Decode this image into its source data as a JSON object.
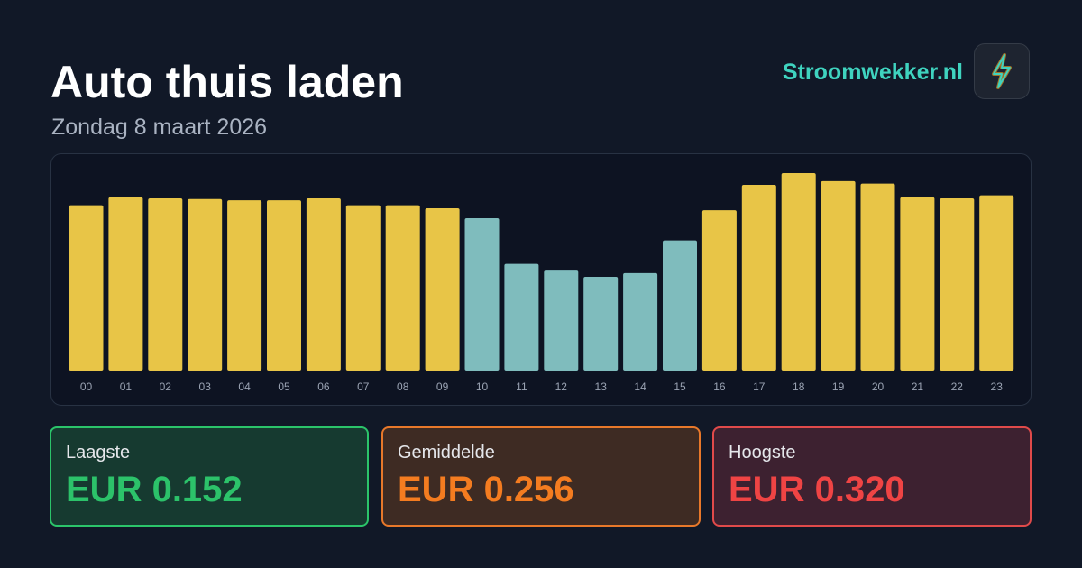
{
  "header": {
    "title": "Auto thuis laden",
    "subtitle": "Zondag 8 maart 2026",
    "brand": "Stroomwekker.nl"
  },
  "chart_data": {
    "type": "bar",
    "categories": [
      "00",
      "01",
      "02",
      "03",
      "04",
      "05",
      "06",
      "07",
      "08",
      "09",
      "10",
      "11",
      "12",
      "13",
      "14",
      "15",
      "16",
      "17",
      "18",
      "19",
      "20",
      "21",
      "22",
      "23"
    ],
    "values": [
      0.268,
      0.281,
      0.279,
      0.278,
      0.276,
      0.276,
      0.279,
      0.268,
      0.268,
      0.263,
      0.247,
      0.173,
      0.162,
      0.152,
      0.158,
      0.211,
      0.26,
      0.301,
      0.32,
      0.307,
      0.303,
      0.281,
      0.279,
      0.284
    ],
    "colors": [
      "#e8c547",
      "#e8c547",
      "#e8c547",
      "#e8c547",
      "#e8c547",
      "#e8c547",
      "#e8c547",
      "#e8c547",
      "#e8c547",
      "#e8c547",
      "#7fbcbd",
      "#7fbcbd",
      "#7fbcbd",
      "#7fbcbd",
      "#7fbcbd",
      "#7fbcbd",
      "#e8c547",
      "#e8c547",
      "#e8c547",
      "#e8c547",
      "#e8c547",
      "#e8c547",
      "#e8c547",
      "#e8c547"
    ]
  },
  "stats": [
    {
      "label": "Laagste",
      "value": "EUR 0.152"
    },
    {
      "label": "Gemiddelde",
      "value": "EUR 0.256"
    },
    {
      "label": "Hoogste",
      "value": "EUR 0.320"
    }
  ]
}
